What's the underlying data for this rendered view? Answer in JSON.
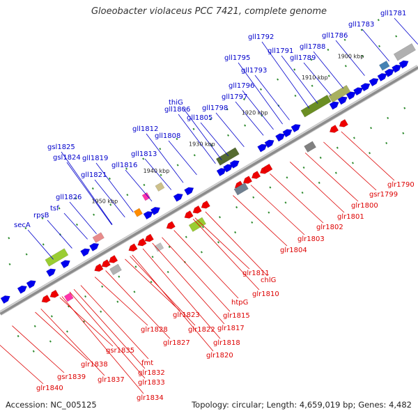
{
  "title": "Gloeobacter violaceus PCC 7421, complete genome",
  "footer": {
    "accession": "Accession: NC_005125",
    "summary": "Topology: circular; Length: 4,659,019 bp; Genes: 4,482"
  },
  "colors": {
    "forward_label": "#0000cc",
    "reverse_label": "#dd0000",
    "backbone": "#8c8c8c",
    "forward_gene": "#0000ee",
    "reverse_gene": "#ee0000",
    "tick": "#2e8b2e"
  },
  "kbp_ticks": [
    "1900 kbp",
    "1910 kbp",
    "1920 kbp",
    "1930 kbp",
    "1940 kbp",
    "1950 kbp"
  ],
  "forward_labels": [
    "gll1781",
    "gll1783",
    "gll1786",
    "gll1788",
    "gll1789",
    "gll1791",
    "gll1792",
    "gll1793",
    "gll1795",
    "gll1796",
    "gll1797",
    "gll1798",
    "thiG",
    "gll1805",
    "gll1806",
    "gll1808",
    "gll1812",
    "gll1813",
    "gll1816",
    "gll1819",
    "gll1821",
    "gsl1824",
    "gsl1825",
    "gll1826",
    "tsf",
    "rpsB",
    "secA"
  ],
  "reverse_labels": [
    "glr1790",
    "gsr1799",
    "glr1800",
    "glr1801",
    "glr1802",
    "glr1803",
    "glr1804",
    "chlG",
    "glr1810",
    "glr1811",
    "htpG",
    "glr1815",
    "glr1817",
    "glr1818",
    "glr1820",
    "glr1822",
    "glr1823",
    "glr1827",
    "glr1828",
    "fmt",
    "gsr1835",
    "glr1832",
    "glr1833",
    "glr1834",
    "glr1837",
    "glr1838",
    "gsr1839",
    "glr1840"
  ]
}
